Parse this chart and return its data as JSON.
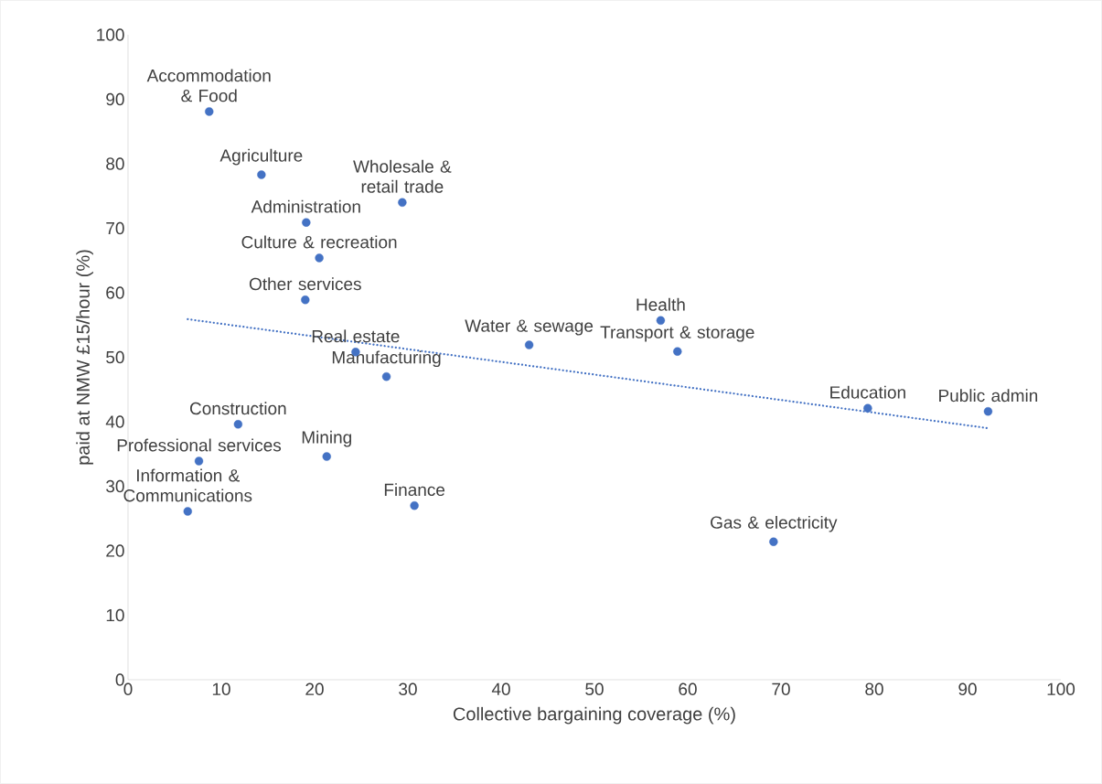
{
  "chart_data": {
    "type": "scatter",
    "xlabel": "Collective bargaining coverage (%)",
    "ylabel": "paid at NMW £15/hour (%)",
    "xlim": [
      0,
      100
    ],
    "xticks": [
      0,
      10,
      20,
      30,
      40,
      50,
      60,
      70,
      80,
      90,
      100
    ],
    "ylim": [
      0,
      100
    ],
    "yticks": [
      0,
      10,
      20,
      30,
      40,
      50,
      60,
      70,
      80,
      90,
      100
    ],
    "series": [
      {
        "color": "#4472c4",
        "marker": "circle",
        "x": [
          8.7,
          14.3,
          29.4,
          19.1,
          20.5,
          19.0,
          24.4,
          27.7,
          43.0,
          57.1,
          58.9,
          79.3,
          92.2,
          11.8,
          7.6,
          21.3,
          6.4,
          30.7,
          69.2
        ],
        "values": [
          88.1,
          78.3,
          74.0,
          70.9,
          65.4,
          58.9,
          50.8,
          47.0,
          51.9,
          55.7,
          50.9,
          42.1,
          41.6,
          39.6,
          33.9,
          34.6,
          26.1,
          27.0,
          21.4
        ]
      },
      {
        "type": "line",
        "color": "#4472c4",
        "line_style": "dotted",
        "marker": "none",
        "x": [
          6.4,
          92.2
        ],
        "values": [
          55.9,
          39.0
        ]
      }
    ],
    "annotations": [
      {
        "text": "Accommodation & Food",
        "x": 8.7,
        "y": 88.1
      },
      {
        "text": "Agriculture",
        "x": 14.3,
        "y": 78.3
      },
      {
        "text": "Wholesale & retail trade",
        "x": 29.4,
        "y": 74.0
      },
      {
        "text": "Administration",
        "x": 19.1,
        "y": 70.9
      },
      {
        "text": "Culture & recreation",
        "x": 20.5,
        "y": 65.4
      },
      {
        "text": "Other services",
        "x": 19.0,
        "y": 58.9
      },
      {
        "text": "Real estate",
        "x": 24.4,
        "y": 50.8
      },
      {
        "text": "Manufacturing",
        "x": 27.7,
        "y": 47.0
      },
      {
        "text": "Water & sewage",
        "x": 43.0,
        "y": 51.9
      },
      {
        "text": "Health",
        "x": 57.1,
        "y": 55.7
      },
      {
        "text": "Transport & storage",
        "x": 58.9,
        "y": 50.9
      },
      {
        "text": "Education",
        "x": 79.3,
        "y": 42.1
      },
      {
        "text": "Public admin",
        "x": 92.2,
        "y": 41.6
      },
      {
        "text": "Construction",
        "x": 11.8,
        "y": 39.6
      },
      {
        "text": "Professional services",
        "x": 7.6,
        "y": 33.9
      },
      {
        "text": "Mining",
        "x": 21.3,
        "y": 34.6
      },
      {
        "text": "Information & Communications",
        "x": 6.4,
        "y": 26.1
      },
      {
        "text": "Finance",
        "x": 30.7,
        "y": 27.0
      },
      {
        "text": "Gas & electricity",
        "x": 69.2,
        "y": 21.4
      }
    ]
  }
}
